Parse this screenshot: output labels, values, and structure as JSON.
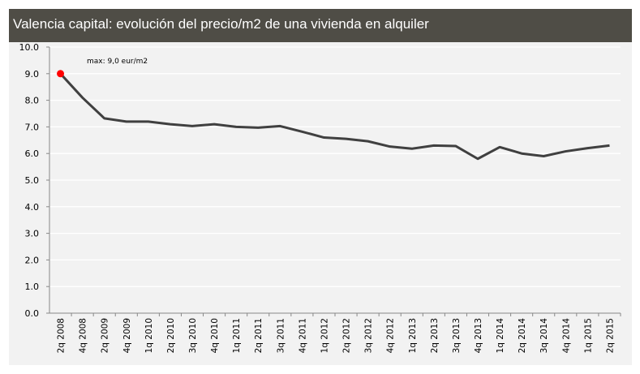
{
  "chart_data": {
    "type": "line",
    "title": "Valencia capital: evolución del precio/m2 de una vivienda en alquiler",
    "categories": [
      "2q 2008",
      "4q 2008",
      "2q 2009",
      "4q 2009",
      "1q 2010",
      "2q 2010",
      "3q 2010",
      "4q 2010",
      "1q 2011",
      "2q 2011",
      "3q 2011",
      "4q 2011",
      "1q 2012",
      "2q 2012",
      "3q 2012",
      "4q 2012",
      "1q 2013",
      "2q 2013",
      "3q 2013",
      "4q 2013",
      "1q 2014",
      "2q 2014",
      "3q 2014",
      "4q 2014",
      "1q 2015",
      "2q 2015"
    ],
    "values": [
      9.0,
      8.1,
      7.32,
      7.2,
      7.2,
      7.1,
      7.03,
      7.1,
      7.0,
      6.97,
      7.03,
      6.82,
      6.6,
      6.55,
      6.46,
      6.26,
      6.18,
      6.3,
      6.28,
      5.8,
      6.24,
      6.0,
      5.9,
      6.08,
      6.2,
      6.3
    ],
    "yticks": [
      "0.0",
      "1.0",
      "2.0",
      "3.0",
      "4.0",
      "5.0",
      "6.0",
      "7.0",
      "8.0",
      "9.0",
      "10.0"
    ],
    "ylim": [
      0,
      10
    ],
    "grid": true,
    "line_color": "#404040",
    "max_marker_color": "#ff0000",
    "annotation": "max: 9,0 eur/m2"
  }
}
